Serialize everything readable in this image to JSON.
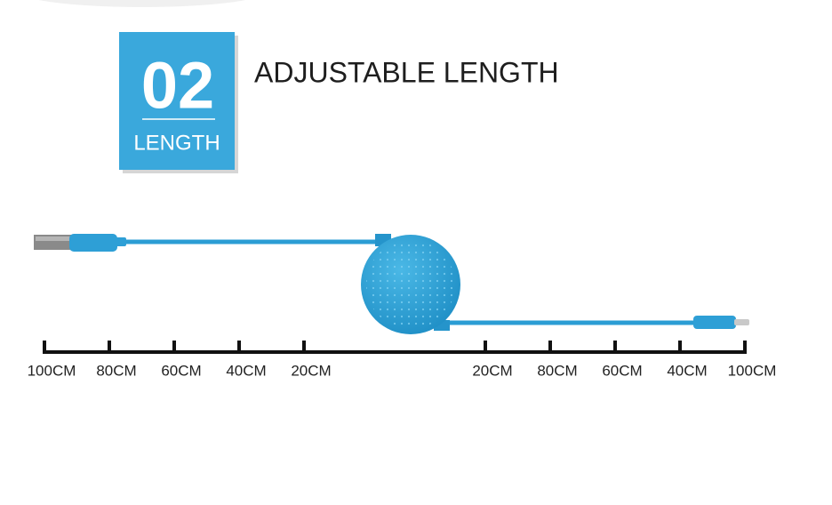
{
  "badge": {
    "number": "02",
    "label": "LENGTH"
  },
  "heading": "ADJUSTABLE LENGTH",
  "scale": {
    "left": [
      "100CM",
      "80CM",
      "60CM",
      "40CM",
      "20CM"
    ],
    "right": [
      "20CM",
      "80CM",
      "60CM",
      "40CM",
      "100CM"
    ]
  }
}
